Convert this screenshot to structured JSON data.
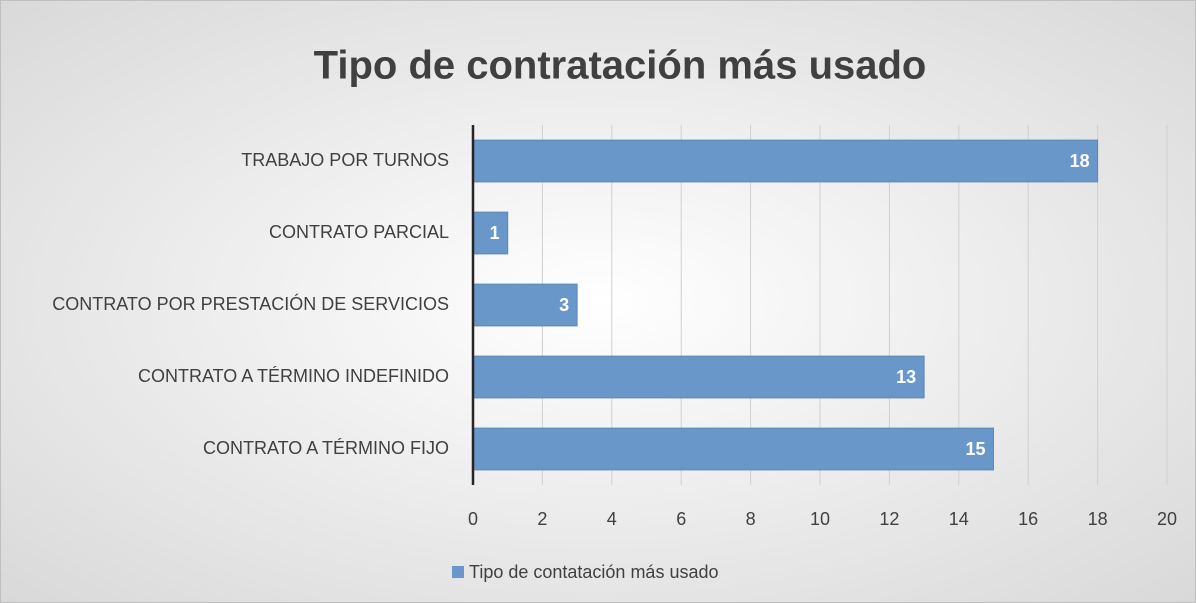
{
  "chart_data": {
    "type": "bar",
    "orientation": "horizontal",
    "title": "Tipo de contratación más usado",
    "categories": [
      "TRABAJO POR TURNOS",
      "CONTRATO PARCIAL",
      "CONTRATO POR PRESTACIÓN DE SERVICIOS",
      "CONTRATO A TÉRMINO INDEFINIDO",
      "CONTRATO A TÉRMINO FIJO"
    ],
    "series": [
      {
        "name": "Tipo de contatación más usado",
        "color": "#6a97c9",
        "values": [
          18,
          1,
          3,
          13,
          15
        ]
      }
    ],
    "xlim": [
      0,
      20
    ],
    "xticks": [
      0,
      2,
      4,
      6,
      8,
      10,
      12,
      14,
      16,
      18,
      20
    ],
    "grid": true,
    "legend": "bottom",
    "data_labels": true
  }
}
